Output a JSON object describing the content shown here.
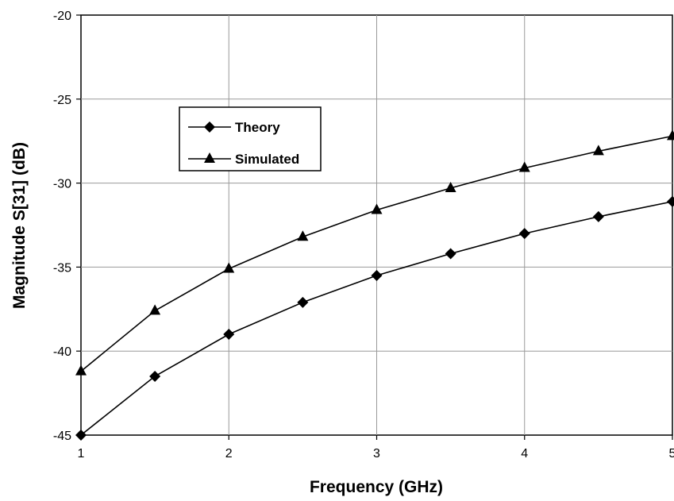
{
  "chart_data": {
    "type": "line",
    "title": "",
    "xlabel": "Frequency (GHz)",
    "ylabel": "Magnitude S[31] (dB)",
    "xlim": [
      1,
      5
    ],
    "ylim": [
      -45,
      -20
    ],
    "x_ticks": [
      1,
      2,
      3,
      4,
      5
    ],
    "x_tick_labels": [
      "1",
      "2",
      "3",
      "4",
      "5"
    ],
    "y_ticks": [
      -45,
      -40,
      -35,
      -30,
      -25,
      -20
    ],
    "y_tick_labels": [
      "-45",
      "-40",
      "-35",
      "-30",
      "-25",
      "-20"
    ],
    "grid": true,
    "legend_position": "top-left inside plot",
    "series": [
      {
        "name": "Theory",
        "marker": "diamond",
        "color": "#000000",
        "x": [
          1,
          1.5,
          2,
          2.5,
          3,
          3.5,
          4,
          4.5,
          5
        ],
        "y": [
          -45.0,
          -41.5,
          -39.0,
          -37.1,
          -35.5,
          -34.2,
          -33.0,
          -32.0,
          -31.1
        ]
      },
      {
        "name": "Simulated",
        "marker": "triangle",
        "color": "#000000",
        "x": [
          1,
          1.5,
          2,
          2.5,
          3,
          3.5,
          4,
          4.5,
          5
        ],
        "y": [
          -41.2,
          -37.6,
          -35.1,
          -33.2,
          -31.6,
          -30.3,
          -29.1,
          -28.1,
          -27.2
        ]
      }
    ]
  }
}
